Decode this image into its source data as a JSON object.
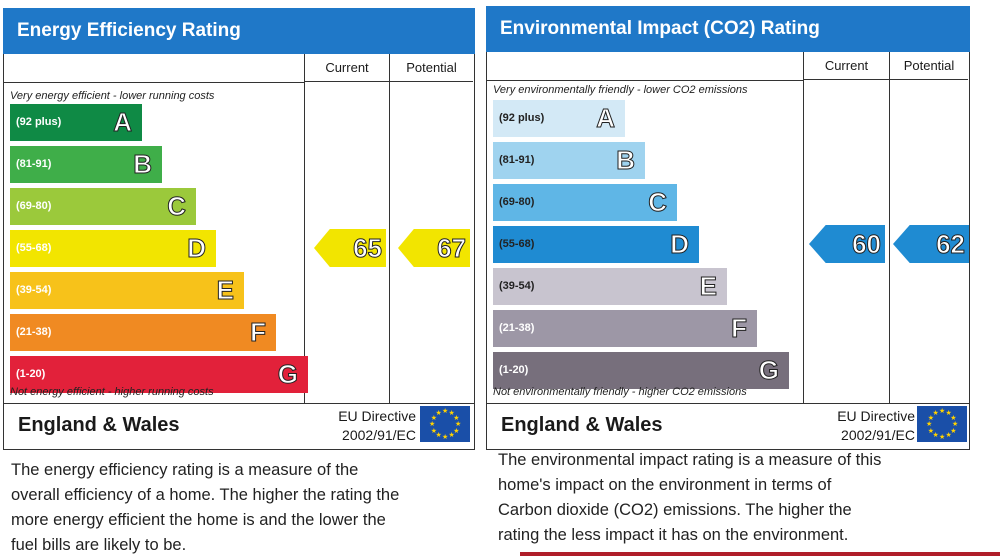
{
  "energy": {
    "title": "Energy Efficiency Rating",
    "col_current": "Current",
    "col_potential": "Potential",
    "top_caption": "Very energy efficient - lower running costs",
    "bottom_caption": "Not energy efficient - higher running costs",
    "bands": [
      {
        "range": "(92 plus)",
        "letter": "A",
        "color": "#0f8a45"
      },
      {
        "range": "(81-91)",
        "letter": "B",
        "color": "#3fae49"
      },
      {
        "range": "(69-80)",
        "letter": "C",
        "color": "#9bc93b"
      },
      {
        "range": "(55-68)",
        "letter": "D",
        "color": "#f2e500"
      },
      {
        "range": "(39-54)",
        "letter": "E",
        "color": "#f7c21a"
      },
      {
        "range": "(21-38)",
        "letter": "F",
        "color": "#f08a22"
      },
      {
        "range": "(1-20)",
        "letter": "G",
        "color": "#e2213a"
      }
    ],
    "current": {
      "value": "65",
      "band": "D",
      "color": "#f2e500"
    },
    "potential": {
      "value": "67",
      "band": "D",
      "color": "#f2e500"
    },
    "region": "England & Wales",
    "directive_line1": "EU Directive",
    "directive_line2": "2002/91/EC",
    "description": [
      "The energy efficiency rating is a measure of the",
      "overall efficiency of a home. The higher the rating the",
      "more energy efficient the home is and the lower the",
      "fuel bills are likely to be."
    ]
  },
  "environment": {
    "title": "Environmental Impact (CO2) Rating",
    "col_current": "Current",
    "col_potential": "Potential",
    "top_caption": "Very environmentally friendly - lower CO2 emissions",
    "bottom_caption": "Not environmentally friendly - higher CO2 emissions",
    "bands": [
      {
        "range": "(92 plus)",
        "letter": "A",
        "color": "#d3e9f6"
      },
      {
        "range": "(81-91)",
        "letter": "B",
        "color": "#9fd3ef"
      },
      {
        "range": "(69-80)",
        "letter": "C",
        "color": "#5fb6e6"
      },
      {
        "range": "(55-68)",
        "letter": "D",
        "color": "#1f8bd2"
      },
      {
        "range": "(39-54)",
        "letter": "E",
        "color": "#c8c4cf"
      },
      {
        "range": "(21-38)",
        "letter": "F",
        "color": "#9d97a6"
      },
      {
        "range": "(1-20)",
        "letter": "G",
        "color": "#776f7c"
      }
    ],
    "current": {
      "value": "60",
      "band": "D",
      "color": "#1f8bd2"
    },
    "potential": {
      "value": "62",
      "band": "D",
      "color": "#1f8bd2"
    },
    "region": "England & Wales",
    "directive_line1": "EU Directive",
    "directive_line2": "2002/91/EC",
    "description": [
      "The environmental impact rating is a measure of this",
      "home's impact on the environment in terms of",
      "Carbon dioxide (CO2) emissions. The higher the",
      "rating the less impact it has on the environment."
    ]
  },
  "icons": {
    "flag": "eu-flag-icon",
    "arrow": "rating-arrow-icon"
  }
}
